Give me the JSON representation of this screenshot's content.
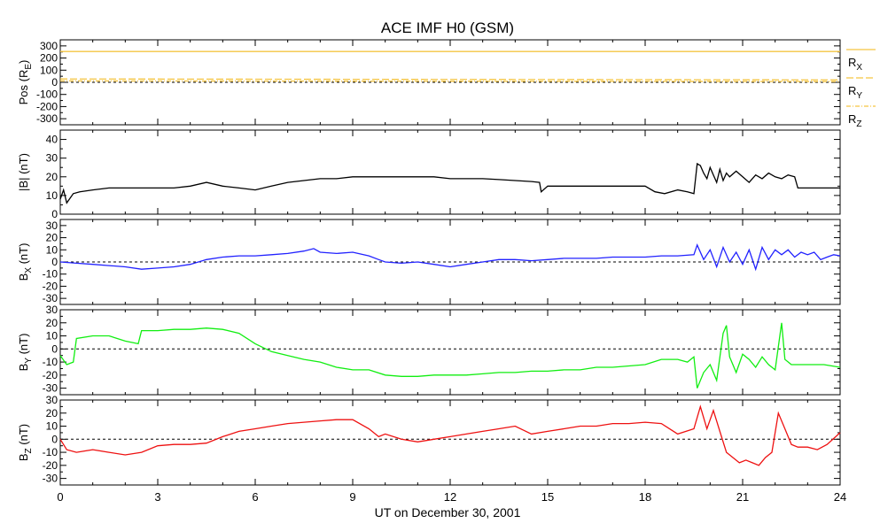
{
  "title": "ACE IMF H0 (GSM)",
  "x_axis": {
    "label": "UT on December 30, 2001",
    "range": [
      0,
      24
    ],
    "ticks": [
      0,
      3,
      6,
      9,
      12,
      15,
      18,
      21,
      24
    ],
    "tick_labels": [
      "0",
      "3",
      "6",
      "9",
      "12",
      "15",
      "18",
      "21",
      "24"
    ]
  },
  "colors": {
    "rx": "#f5c542",
    "ry": "#f5c542",
    "rz": "#f5c542",
    "b_total": "#000000",
    "bx": "#2222ff",
    "by": "#11ee11",
    "bz": "#ee1111"
  },
  "chart_data": [
    {
      "type": "line",
      "ylabel": {
        "main": "Pos (R",
        "sub": "E",
        "tail": ")"
      },
      "ylim": [
        -350,
        350
      ],
      "yticks": [
        300,
        200,
        100,
        0,
        -100,
        -200,
        -300
      ],
      "ytick_labels": [
        "300",
        "200",
        "100",
        "0",
        "-100",
        "-200",
        "-300"
      ],
      "zero_line": true,
      "legend": [
        {
          "main": "R",
          "sub": "X"
        },
        {
          "main": "R",
          "sub": "Y"
        },
        {
          "main": "R",
          "sub": "Z"
        }
      ],
      "series": [
        {
          "name": "RX",
          "x": [
            0,
            24
          ],
          "values": [
            254,
            254
          ]
        },
        {
          "name": "RY",
          "x": [
            0,
            24
          ],
          "values": [
            28,
            20
          ]
        },
        {
          "name": "RZ",
          "x": [
            0,
            24
          ],
          "values": [
            12,
            6
          ]
        }
      ]
    },
    {
      "type": "line",
      "ylabel": {
        "main": "|B| (nT)",
        "sub": "",
        "tail": ""
      },
      "ylim": [
        0,
        45
      ],
      "yticks": [
        40,
        30,
        20,
        10,
        0
      ],
      "ytick_labels": [
        "40",
        "30",
        "20",
        "10",
        "0"
      ],
      "zero_line": false,
      "series": [
        {
          "name": "|B|",
          "x": [
            0,
            0.1,
            0.2,
            0.4,
            0.6,
            1.0,
            1.5,
            2.0,
            2.5,
            3.0,
            3.5,
            4.0,
            4.5,
            5.0,
            5.5,
            6.0,
            6.5,
            7.0,
            7.5,
            8.0,
            8.5,
            9.0,
            9.5,
            10.0,
            10.5,
            11.0,
            11.5,
            12.0,
            12.5,
            13.0,
            13.5,
            14.0,
            14.5,
            14.75,
            14.8,
            15.0,
            15.5,
            16.0,
            16.5,
            17.0,
            17.5,
            18.0,
            18.3,
            18.6,
            19.0,
            19.3,
            19.5,
            19.6,
            19.7,
            19.8,
            19.9,
            20.0,
            20.1,
            20.2,
            20.3,
            20.4,
            20.5,
            20.6,
            20.8,
            21.0,
            21.2,
            21.4,
            21.6,
            21.8,
            22.0,
            22.2,
            22.4,
            22.6,
            22.7,
            23.0,
            23.5,
            24.0
          ],
          "values": [
            8,
            13,
            6,
            11,
            12,
            13,
            14,
            14,
            14,
            14,
            14,
            15,
            17,
            15,
            14,
            13,
            15,
            17,
            18,
            19,
            19,
            20,
            20,
            20,
            20,
            20,
            20,
            19,
            19,
            19,
            18.5,
            18,
            17.5,
            17,
            12,
            15,
            15,
            15,
            15,
            15,
            15,
            15,
            12,
            11,
            13,
            12,
            11,
            27,
            26,
            22,
            19,
            25,
            21,
            17,
            24,
            18,
            22,
            20,
            23,
            20,
            17,
            21,
            19,
            22,
            20,
            19,
            21,
            20,
            14,
            14,
            14,
            14
          ]
        }
      ]
    },
    {
      "type": "line",
      "ylabel": {
        "main": "B",
        "sub": "X",
        "tail": " (nT)"
      },
      "ylim": [
        -35,
        35
      ],
      "yticks": [
        30,
        20,
        10,
        0,
        -10,
        -20,
        -30
      ],
      "ytick_labels": [
        "30",
        "20",
        "10",
        "0",
        "-10",
        "-20",
        "-30"
      ],
      "zero_line": true,
      "series": [
        {
          "name": "BX",
          "x": [
            0,
            0.5,
            1.0,
            1.5,
            2.0,
            2.5,
            3.0,
            3.5,
            4.0,
            4.5,
            5.0,
            5.5,
            6.0,
            6.5,
            7.0,
            7.5,
            7.8,
            8.0,
            8.5,
            9.0,
            9.5,
            9.8,
            10.0,
            10.5,
            11.0,
            11.5,
            12.0,
            12.5,
            13.0,
            13.5,
            14.0,
            14.5,
            15.0,
            15.5,
            16.0,
            16.5,
            17.0,
            17.5,
            18.0,
            18.5,
            19.0,
            19.5,
            19.6,
            19.8,
            20.0,
            20.2,
            20.4,
            20.6,
            20.8,
            21.0,
            21.2,
            21.4,
            21.6,
            21.8,
            22.0,
            22.2,
            22.4,
            22.6,
            22.8,
            23.0,
            23.2,
            23.4,
            23.6,
            23.8,
            24.0
          ],
          "values": [
            0,
            -1,
            -2,
            -3,
            -4,
            -6,
            -5,
            -4,
            -2,
            2,
            4,
            5,
            5,
            6,
            7,
            9,
            11,
            8,
            7,
            8,
            5,
            2,
            0,
            -1,
            0,
            -2,
            -4,
            -2,
            0,
            2,
            2,
            1,
            2,
            3,
            3,
            3,
            4,
            4,
            4,
            5,
            5,
            6,
            14,
            2,
            10,
            -4,
            12,
            0,
            8,
            -2,
            10,
            -6,
            12,
            2,
            10,
            6,
            10,
            4,
            8,
            6,
            8,
            2,
            4,
            6,
            5
          ]
        }
      ]
    },
    {
      "type": "line",
      "ylabel": {
        "main": "B",
        "sub": "Y",
        "tail": " (nT)"
      },
      "ylim": [
        -35,
        30
      ],
      "yticks": [
        30,
        20,
        10,
        0,
        -10,
        -20,
        -30
      ],
      "ytick_labels": [
        "30",
        "20",
        "10",
        "0",
        "-10",
        "-20",
        "-30"
      ],
      "zero_line": true,
      "series": [
        {
          "name": "BY",
          "x": [
            0,
            0.2,
            0.4,
            0.5,
            1.0,
            1.5,
            2.0,
            2.4,
            2.5,
            3.0,
            3.5,
            4.0,
            4.5,
            5.0,
            5.5,
            6.0,
            6.5,
            7.0,
            7.5,
            8.0,
            8.5,
            9.0,
            9.5,
            10.0,
            10.5,
            11.0,
            11.5,
            12.0,
            12.5,
            13.0,
            13.5,
            14.0,
            14.5,
            15.0,
            15.5,
            16.0,
            16.5,
            17.0,
            17.5,
            18.0,
            18.5,
            19.0,
            19.3,
            19.5,
            19.6,
            19.8,
            20.0,
            20.2,
            20.4,
            20.5,
            20.6,
            20.8,
            21.0,
            21.2,
            21.4,
            21.6,
            21.8,
            22.0,
            22.2,
            22.3,
            22.5,
            23.0,
            23.5,
            24.0
          ],
          "values": [
            -5,
            -12,
            -10,
            8,
            10,
            10,
            6,
            4,
            14,
            14,
            15,
            15,
            16,
            15,
            12,
            4,
            -2,
            -5,
            -8,
            -10,
            -14,
            -16,
            -16,
            -20,
            -21,
            -21,
            -20,
            -20,
            -20,
            -19,
            -18,
            -18,
            -17,
            -17,
            -16,
            -16,
            -14,
            -14,
            -13,
            -12,
            -8,
            -8,
            -10,
            -6,
            -30,
            -18,
            -12,
            -24,
            12,
            18,
            -6,
            -18,
            -4,
            -8,
            -14,
            -6,
            -12,
            -16,
            20,
            -8,
            -12,
            -12,
            -12,
            -14
          ]
        }
      ]
    },
    {
      "type": "line",
      "ylabel": {
        "main": "B",
        "sub": "Z",
        "tail": " (nT)"
      },
      "ylim": [
        -35,
        30
      ],
      "yticks": [
        30,
        20,
        10,
        0,
        -10,
        -20,
        -30
      ],
      "ytick_labels": [
        "30",
        "20",
        "10",
        "0",
        "-10",
        "-20",
        "-30"
      ],
      "zero_line": true,
      "series": [
        {
          "name": "BZ",
          "x": [
            0,
            0.2,
            0.5,
            1.0,
            1.5,
            2.0,
            2.5,
            3.0,
            3.5,
            4.0,
            4.5,
            5.0,
            5.5,
            6.0,
            6.5,
            7.0,
            7.5,
            8.0,
            8.5,
            9.0,
            9.5,
            9.8,
            10.0,
            10.5,
            11.0,
            11.5,
            12.0,
            12.5,
            13.0,
            13.5,
            14.0,
            14.5,
            15.0,
            15.5,
            16.0,
            16.5,
            17.0,
            17.5,
            18.0,
            18.5,
            19.0,
            19.5,
            19.7,
            19.9,
            20.1,
            20.3,
            20.5,
            20.7,
            20.9,
            21.1,
            21.3,
            21.5,
            21.7,
            21.9,
            22.1,
            22.3,
            22.5,
            22.7,
            23.0,
            23.3,
            23.6,
            24.0
          ],
          "values": [
            0,
            -8,
            -10,
            -8,
            -10,
            -12,
            -10,
            -5,
            -4,
            -4,
            -3,
            2,
            6,
            8,
            10,
            12,
            13,
            14,
            15,
            15,
            8,
            2,
            4,
            0,
            -2,
            0,
            2,
            4,
            6,
            8,
            10,
            4,
            6,
            8,
            10,
            10,
            12,
            12,
            13,
            12,
            4,
            8,
            25,
            8,
            22,
            6,
            -10,
            -14,
            -18,
            -16,
            -18,
            -20,
            -14,
            -10,
            20,
            8,
            -4,
            -6,
            -6,
            -8,
            -4,
            5
          ]
        }
      ]
    }
  ]
}
